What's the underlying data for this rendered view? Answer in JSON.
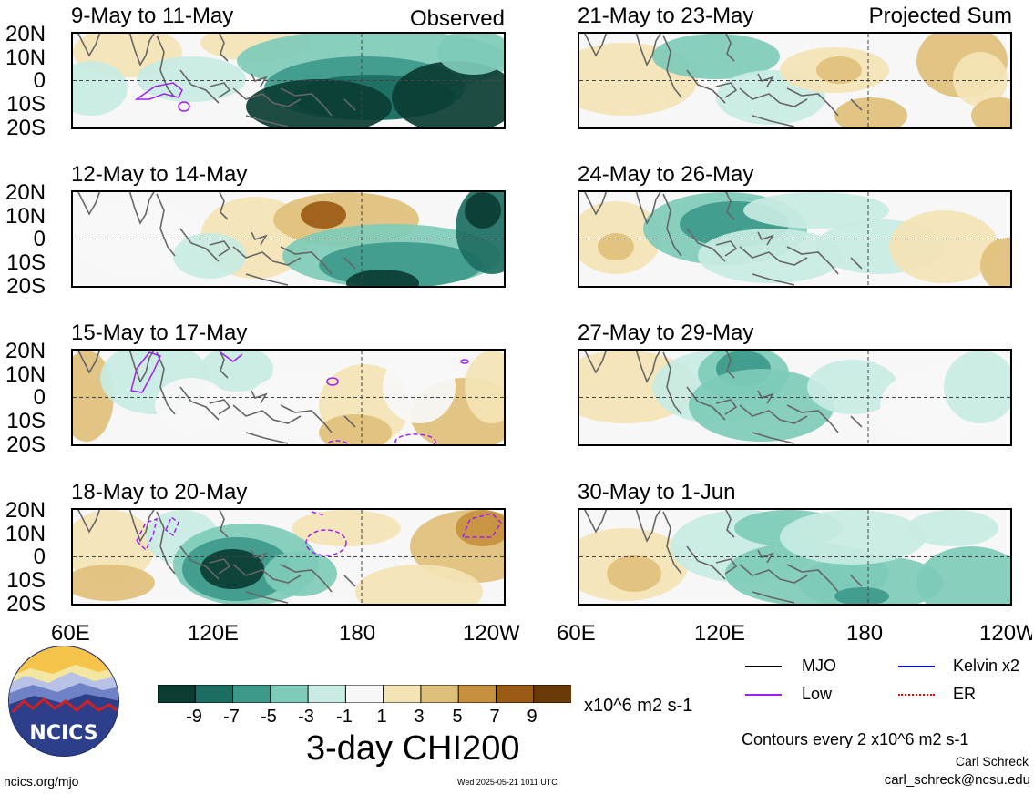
{
  "panels": [
    {
      "id": "p1",
      "title": "9-May to 11-May",
      "tag": "Observed"
    },
    {
      "id": "p2",
      "title": "12-May to 14-May",
      "tag": ""
    },
    {
      "id": "p3",
      "title": "15-May to 17-May",
      "tag": ""
    },
    {
      "id": "p4",
      "title": "18-May to 20-May",
      "tag": ""
    },
    {
      "id": "p5",
      "title": "21-May to 23-May",
      "tag": "Projected Sum"
    },
    {
      "id": "p6",
      "title": "24-May to 26-May",
      "tag": ""
    },
    {
      "id": "p7",
      "title": "27-May to 29-May",
      "tag": ""
    },
    {
      "id": "p8",
      "title": "30-May to 1-Jun",
      "tag": ""
    }
  ],
  "lat_labels": [
    "20N",
    "10N",
    "0",
    "10S",
    "20S"
  ],
  "lon_labels": [
    "60E",
    "120E",
    "180",
    "120W"
  ],
  "colorbar": {
    "labels": [
      "-9",
      "-7",
      "-5",
      "-3",
      "-1",
      "1",
      "3",
      "5",
      "7",
      "9"
    ],
    "colors": [
      "#0b3d33",
      "#1c6e62",
      "#3d9a8b",
      "#7ecbb9",
      "#c8ece3",
      "#f7f7f7",
      "#f4e3b5",
      "#dfc07a",
      "#c6913e",
      "#9c5b14",
      "#6b3a09"
    ],
    "units": "x10^6 m2 s-1"
  },
  "main_title": "3-day CHI200",
  "legend": [
    {
      "label": "MJO",
      "color": "#000000"
    },
    {
      "label": "Kelvin x2",
      "color": "#0000ff"
    },
    {
      "label": "Low",
      "color": "#a020f0"
    },
    {
      "label": "ER",
      "color": "#ff0000"
    }
  ],
  "contours_note": "Contours every 2 x10^6 m2 s-1",
  "author": "Carl Schreck",
  "email": "carl_schreck@ncsu.edu",
  "url": "ncics.org/mjo",
  "timestamp": "Wed 2025-05-21 1011 UTC",
  "logo_text": "NCICS"
}
